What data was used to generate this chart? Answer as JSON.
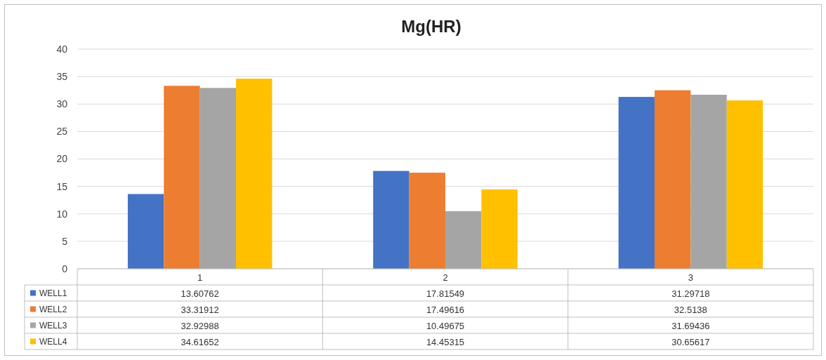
{
  "chart_data": {
    "type": "bar",
    "title": "Mg(HR)",
    "categories": [
      "1",
      "2",
      "3"
    ],
    "series": [
      {
        "name": "WELL1",
        "color": "#4472c4",
        "values": [
          13.60762,
          17.81549,
          31.29718
        ]
      },
      {
        "name": "WELL2",
        "color": "#ed7d31",
        "values": [
          33.31912,
          17.49616,
          32.5138
        ]
      },
      {
        "name": "WELL3",
        "color": "#a5a5a5",
        "values": [
          32.92988,
          10.49675,
          31.69436
        ]
      },
      {
        "name": "WELL4",
        "color": "#ffc000",
        "values": [
          34.61652,
          14.45315,
          30.65617
        ]
      }
    ],
    "ylim": [
      0,
      40
    ],
    "yticks": [
      0,
      5,
      10,
      15,
      20,
      25,
      30,
      35,
      40
    ],
    "grid": "y",
    "legend": "bottom",
    "data_labels": true
  }
}
